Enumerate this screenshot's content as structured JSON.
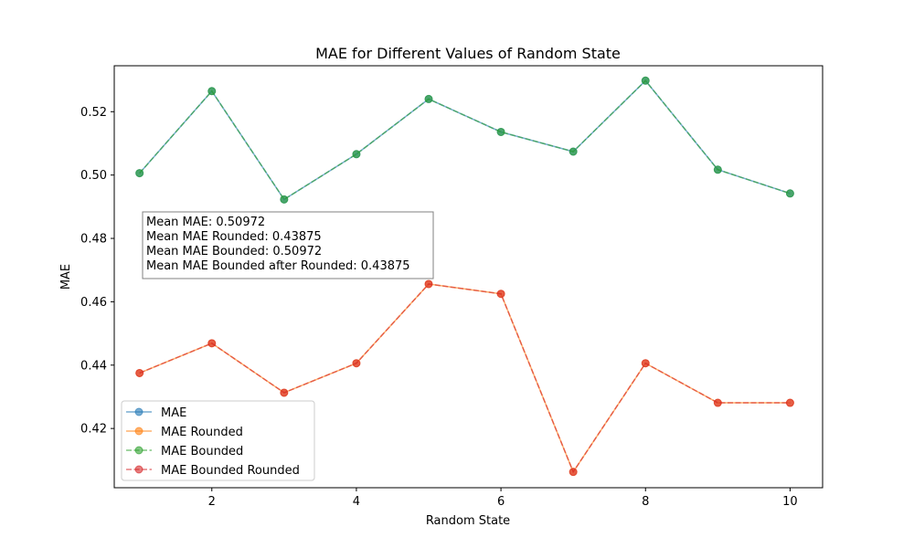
{
  "chart_data": {
    "type": "line",
    "title": "MAE for Different Values of Random State",
    "xlabel": "Random State",
    "ylabel": "MAE",
    "xlim": [
      0.65,
      10.45
    ],
    "ylim": [
      0.4013,
      0.5345
    ],
    "x": [
      1,
      2,
      3,
      4,
      5,
      6,
      7,
      8,
      9,
      10
    ],
    "xticks": [
      2,
      4,
      6,
      8,
      10
    ],
    "yticks": [
      0.42,
      0.44,
      0.46,
      0.48,
      0.5,
      0.52
    ],
    "ytick_labels": [
      "0.42",
      "0.44",
      "0.46",
      "0.48",
      "0.50",
      "0.52"
    ],
    "grid": false,
    "legend_position": "lower-left",
    "series": [
      {
        "name": "MAE",
        "color": "#1f77b4",
        "dash": false,
        "values": [
          0.5006,
          0.5265,
          0.4923,
          0.5066,
          0.524,
          0.5136,
          0.5074,
          0.5298,
          0.5017,
          0.4942
        ]
      },
      {
        "name": "MAE Rounded",
        "color": "#ff7f0e",
        "dash": false,
        "values": [
          0.4375,
          0.4469,
          0.4313,
          0.4406,
          0.4656,
          0.4625,
          0.4063,
          0.4406,
          0.4281,
          0.4281
        ]
      },
      {
        "name": "MAE Bounded",
        "color": "#2ca02c",
        "dash": true,
        "values": [
          0.5006,
          0.5265,
          0.4923,
          0.5066,
          0.524,
          0.5136,
          0.5074,
          0.5298,
          0.5017,
          0.4942
        ]
      },
      {
        "name": "MAE Bounded Rounded",
        "color": "#d62728",
        "dash": true,
        "values": [
          0.4375,
          0.4469,
          0.4313,
          0.4406,
          0.4656,
          0.4625,
          0.4063,
          0.4406,
          0.4281,
          0.4281
        ]
      }
    ],
    "annotation": [
      "Mean MAE: 0.50972",
      "Mean MAE Rounded: 0.43875",
      "Mean MAE Bounded: 0.50972",
      "Mean MAE Bounded after Rounded: 0.43875"
    ]
  }
}
